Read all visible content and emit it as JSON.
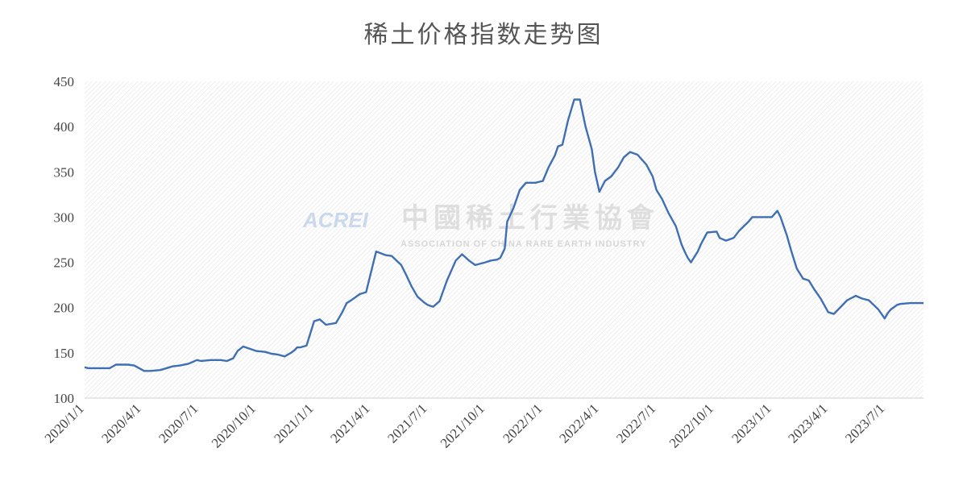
{
  "chart_data": {
    "type": "line",
    "title": "稀土价格指数走势图",
    "xlabel": "",
    "ylabel": "",
    "ylim": [
      100,
      450
    ],
    "yticks": [
      100,
      150,
      200,
      250,
      300,
      350,
      400,
      450
    ],
    "xlim": [
      "2020/1/1",
      "2023/8/31"
    ],
    "xticks": [
      "2020/1/1",
      "2020/4/1",
      "2020/7/1",
      "2020/10/1",
      "2021/1/1",
      "2021/4/1",
      "2021/7/1",
      "2021/10/1",
      "2022/1/1",
      "2022/4/1",
      "2022/7/1",
      "2022/10/1",
      "2023/1/1",
      "2023/4/1",
      "2023/7/1"
    ],
    "grid": false,
    "legend": "none",
    "line_color": "#3e6fb5",
    "series": [
      {
        "name": "",
        "x": [
          "2020/1/1",
          "2020/1/7",
          "2020/2/1",
          "2020/2/10",
          "2020/2/20",
          "2020/3/10",
          "2020/3/20",
          "2020/4/5",
          "2020/4/15",
          "2020/5/1",
          "2020/5/20",
          "2020/6/1",
          "2020/6/15",
          "2020/6/28",
          "2020/7/5",
          "2020/7/20",
          "2020/8/5",
          "2020/8/15",
          "2020/8/25",
          "2020/9/1",
          "2020/9/10",
          "2020/10/1",
          "2020/10/15",
          "2020/10/25",
          "2020/11/5",
          "2020/11/15",
          "2020/11/20",
          "2020/11/25",
          "2020/12/1",
          "2020/12/5",
          "2020/12/10",
          "2020/12/20",
          "2021/1/1",
          "2021/1/10",
          "2021/1/20",
          "2021/2/5",
          "2021/2/15",
          "2021/2/22",
          "2021/3/1",
          "2021/3/5",
          "2021/3/15",
          "2021/3/25",
          "2021/4/10",
          "2021/4/25",
          "2021/5/5",
          "2021/5/20",
          "2021/5/28",
          "2021/6/5",
          "2021/6/15",
          "2021/6/25",
          "2021/7/1",
          "2021/7/5",
          "2021/7/10",
          "2021/7/20",
          "2021/8/1",
          "2021/8/15",
          "2021/8/25",
          "2021/9/5",
          "2021/9/15",
          "2021/10/1",
          "2021/10/10",
          "2021/10/20",
          "2021/10/25",
          "2021/11/1",
          "2021/11/5",
          "2021/11/15",
          "2021/11/25",
          "2021/12/5",
          "2021/12/20",
          "2022/1/1",
          "2022/1/10",
          "2022/1/20",
          "2022/1/25",
          "2022/2/1",
          "2022/2/10",
          "2022/2/20",
          "2022/3/1",
          "2022/3/10",
          "2022/3/20",
          "2022/3/25",
          "2022/4/1",
          "2022/4/10",
          "2022/4/20",
          "2022/5/1",
          "2022/5/10",
          "2022/5/20",
          "2022/6/1",
          "2022/6/15",
          "2022/6/25",
          "2022/7/1",
          "2022/7/10",
          "2022/7/20",
          "2022/8/1",
          "2022/8/10",
          "2022/8/15",
          "2022/8/20",
          "2022/8/25",
          "2022/9/5",
          "2022/9/10",
          "2022/9/20",
          "2022/10/5",
          "2022/10/10",
          "2022/10/20",
          "2022/11/1",
          "2022/11/10",
          "2022/11/25",
          "2022/12/1",
          "2022/12/10",
          "2022/12/20",
          "2023/1/1",
          "2023/1/10",
          "2023/1/15",
          "2023/1/20",
          "2023/1/25",
          "2023/2/1",
          "2023/2/10",
          "2023/2/20",
          "2023/3/1",
          "2023/3/10",
          "2023/3/20",
          "2023/4/1",
          "2023/4/10",
          "2023/4/20",
          "2023/5/1",
          "2023/5/15",
          "2023/5/25",
          "2023/6/5",
          "2023/6/20",
          "2023/6/30",
          "2023/7/5",
          "2023/7/10",
          "2023/7/20",
          "2023/7/25",
          "2023/8/10",
          "2023/8/31"
        ],
        "values": [
          134,
          133,
          133,
          133,
          137,
          137,
          136,
          130,
          130,
          131,
          135,
          136,
          138,
          142,
          141,
          142,
          142,
          141,
          144,
          152,
          157,
          152,
          151,
          149,
          148,
          146,
          148,
          150,
          153,
          156,
          156,
          158,
          185,
          187,
          181,
          183,
          195,
          205,
          208,
          210,
          215,
          217,
          262,
          258,
          257,
          247,
          236,
          224,
          212,
          206,
          203,
          202,
          201,
          207,
          230,
          252,
          259,
          252,
          247,
          250,
          252,
          253,
          255,
          265,
          295,
          310,
          330,
          338,
          338,
          340,
          355,
          368,
          378,
          380,
          407,
          430,
          430,
          400,
          375,
          350,
          328,
          340,
          345,
          355,
          366,
          372,
          369,
          358,
          345,
          330,
          320,
          305,
          290,
          270,
          262,
          255,
          250,
          262,
          270,
          283,
          284,
          277,
          274,
          277,
          285,
          295,
          300,
          300,
          300,
          300,
          307,
          300,
          290,
          280,
          263,
          243,
          232,
          230,
          220,
          210,
          195,
          193,
          200,
          208,
          213,
          210,
          208,
          198,
          188,
          194,
          198,
          203,
          204,
          205,
          205
        ]
      }
    ]
  },
  "watermark": {
    "logo": "ACREI",
    "name_cn": "中國稀土行業協會",
    "name_en": "ASSOCIATION OF CHINA RARE EARTH INDUSTRY"
  }
}
